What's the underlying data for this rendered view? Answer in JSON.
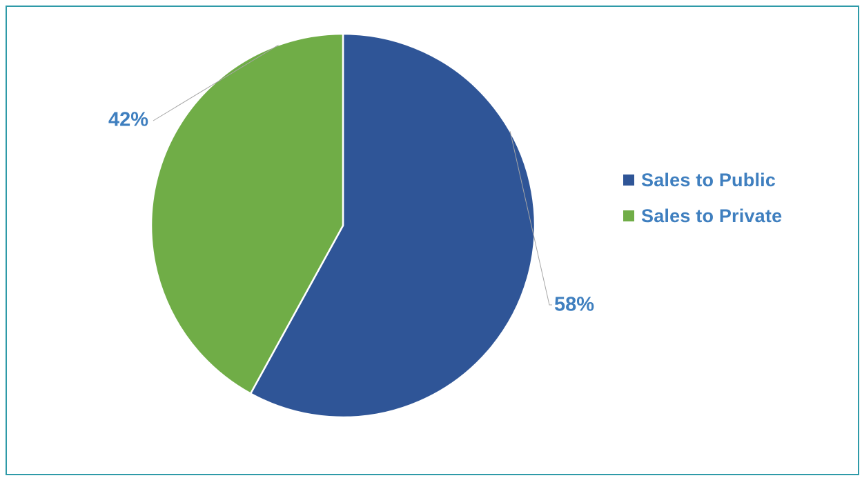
{
  "chart_data": {
    "type": "pie",
    "title": "",
    "slices": [
      {
        "label": "Sales to Public",
        "value": 58,
        "display": "58%",
        "color": "#2f5597"
      },
      {
        "label": "Sales to Private",
        "value": 42,
        "display": "42%",
        "color": "#70ad47"
      }
    ],
    "label_color": "#3f7fbf",
    "legend_color": "#3f7fbf",
    "legend_position": "right",
    "start_angle_deg": 0,
    "direction": "clockwise"
  }
}
